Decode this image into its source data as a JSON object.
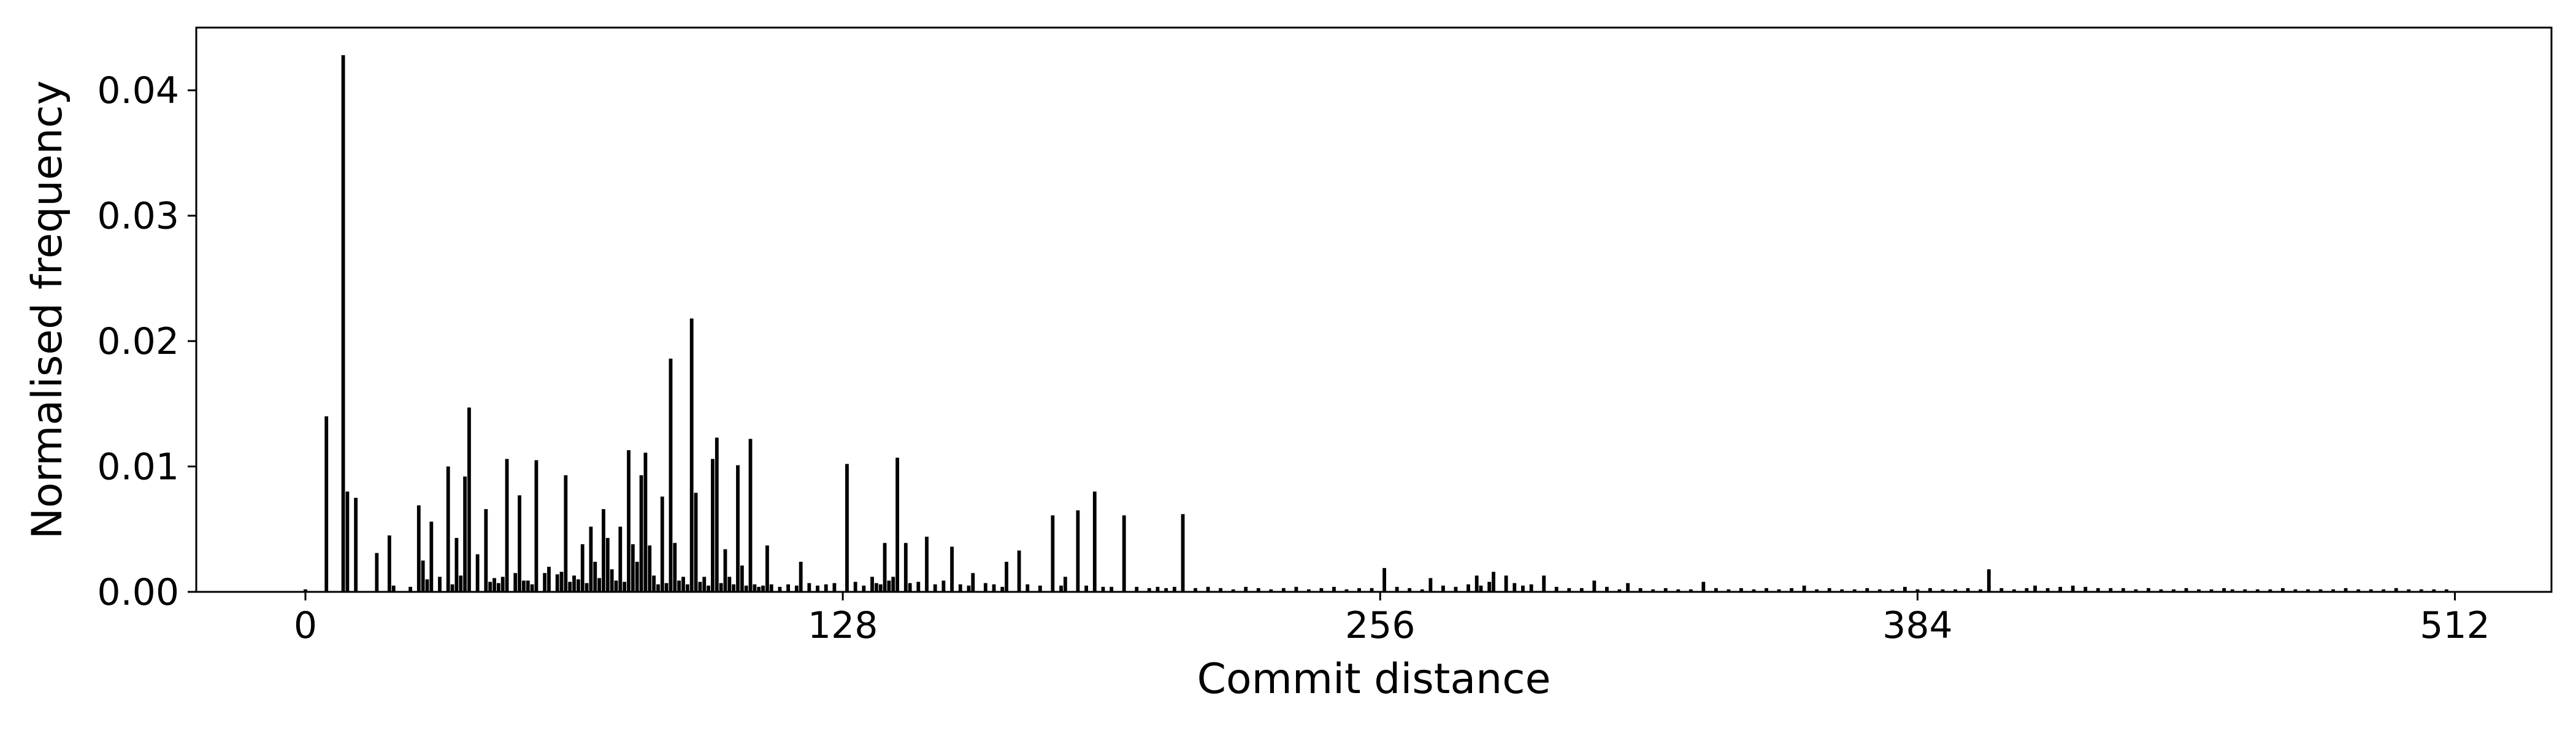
{
  "chart_data": {
    "type": "bar",
    "xlabel": "Commit distance",
    "ylabel": "Normalised frequency",
    "xlim": [
      -26,
      535
    ],
    "ylim": [
      0,
      0.045
    ],
    "xticks": [
      0,
      128,
      256,
      384,
      512
    ],
    "xtick_labels": [
      "0",
      "128",
      "256",
      "384",
      "512"
    ],
    "yticks": [
      0,
      0.01,
      0.02,
      0.03,
      0.04
    ],
    "ytick_labels": [
      "0.00",
      "0.01",
      "0.02",
      "0.03",
      "0.04"
    ],
    "grid": false,
    "bar_color": "#000000",
    "x": [
      0,
      5,
      9,
      10,
      12,
      17,
      20,
      27,
      28,
      30,
      32,
      34,
      36,
      37,
      38,
      39,
      41,
      43,
      45,
      48,
      50,
      51,
      52,
      55,
      57,
      58,
      60,
      61,
      62,
      64,
      66,
      68,
      69,
      71,
      72,
      73,
      75,
      77,
      78,
      79,
      80,
      81,
      82,
      85,
      87,
      88,
      90,
      92,
      93,
      95,
      97,
      98,
      100,
      101,
      103,
      104,
      106,
      110,
      118,
      129,
      135,
      138,
      140,
      141,
      143,
      148,
      154,
      159,
      167,
      170,
      178,
      181,
      184,
      188,
      195,
      209,
      257,
      268,
      279,
      282,
      283,
      286,
      295,
      307,
      315,
      333,
      357,
      381,
      401,
      412,
      427,
      459
    ],
    "values": [
      0.0002,
      0.014,
      0.0428,
      0.008,
      0.0075,
      0.0031,
      0.0045,
      0.0069,
      0.0025,
      0.0056,
      0.0012,
      0.01,
      0.0043,
      0.0013,
      0.0092,
      0.0147,
      0.003,
      0.0066,
      0.0011,
      0.0106,
      0.0015,
      0.0077,
      0.0009,
      0.0105,
      0.0015,
      0.002,
      0.0014,
      0.0016,
      0.0093,
      0.0013,
      0.0038,
      0.0052,
      0.0024,
      0.0066,
      0.0043,
      0.0018,
      0.0052,
      0.0113,
      0.0038,
      0.0024,
      0.0093,
      0.0111,
      0.0037,
      0.0076,
      0.0186,
      0.0039,
      0.0012,
      0.0218,
      0.0079,
      0.0012,
      0.0106,
      0.0123,
      0.0034,
      0.0012,
      0.0101,
      0.0021,
      0.0122,
      0.0037,
      0.0024,
      0.0102,
      0.0012,
      0.0039,
      0.0012,
      0.0107,
      0.0039,
      0.0044,
      0.0036,
      0.0015,
      0.0024,
      0.0033,
      0.0061,
      0.0012,
      0.0065,
      0.008,
      0.0061,
      0.0062,
      0.0019,
      0.0011,
      0.0013,
      0.0008,
      0.0016,
      0.0013,
      0.0013,
      0.0009,
      0.0007,
      0.0008,
      0.0005,
      0.0004,
      0.0018,
      0.0005,
      0.0003,
      0.0002
    ],
    "small_x": [
      21,
      25,
      29,
      35,
      44,
      46,
      47,
      53,
      54,
      63,
      65,
      67,
      70,
      74,
      76,
      83,
      84,
      86,
      89,
      91,
      94,
      96,
      99,
      102,
      105,
      107,
      108,
      109,
      111,
      113,
      115,
      117,
      120,
      122,
      124,
      126,
      131,
      133,
      136,
      137,
      139,
      144,
      146,
      150,
      152,
      156,
      158,
      162,
      164,
      166,
      172,
      175,
      180,
      186,
      190,
      192,
      198,
      201,
      203,
      205,
      207,
      212,
      215,
      218,
      221,
      224,
      227,
      230,
      233,
      236,
      239,
      242,
      245,
      248,
      251,
      254,
      260,
      263,
      266,
      271,
      274,
      277,
      280,
      288,
      290,
      292,
      298,
      301,
      304,
      310,
      313,
      318,
      321,
      324,
      327,
      330,
      336,
      339,
      342,
      345,
      348,
      351,
      354,
      360,
      363,
      366,
      369,
      372,
      375,
      378,
      384,
      387,
      390,
      393,
      396,
      399,
      404,
      407,
      410,
      415,
      418,
      421,
      424,
      430,
      433,
      436,
      439,
      442,
      445,
      448,
      451,
      454,
      457,
      462,
      465,
      468,
      471,
      474,
      477,
      480,
      483,
      486,
      489,
      492,
      495,
      498,
      501,
      504,
      507,
      510
    ],
    "small_values": [
      0.0005,
      0.0004,
      0.001,
      0.0006,
      0.0008,
      0.0007,
      0.0012,
      0.0009,
      0.0006,
      0.0008,
      0.001,
      0.0007,
      0.0011,
      0.0009,
      0.0008,
      0.0013,
      0.0006,
      0.0007,
      0.0009,
      0.0006,
      0.0008,
      0.0005,
      0.0007,
      0.0006,
      0.0005,
      0.0006,
      0.0004,
      0.0005,
      0.0006,
      0.0004,
      0.0006,
      0.0005,
      0.0007,
      0.0005,
      0.0006,
      0.0007,
      0.0008,
      0.0005,
      0.0007,
      0.0006,
      0.0009,
      0.0007,
      0.0008,
      0.0006,
      0.0009,
      0.0006,
      0.0005,
      0.0007,
      0.0006,
      0.0004,
      0.0006,
      0.0005,
      0.0005,
      0.0005,
      0.0004,
      0.0004,
      0.0004,
      0.0003,
      0.0004,
      0.0003,
      0.0004,
      0.0003,
      0.0004,
      0.0003,
      0.0002,
      0.0004,
      0.0003,
      0.0002,
      0.0003,
      0.0004,
      0.0002,
      0.0003,
      0.0004,
      0.0002,
      0.0003,
      0.0003,
      0.0004,
      0.0003,
      0.0002,
      0.0005,
      0.0004,
      0.0006,
      0.0005,
      0.0007,
      0.0005,
      0.0006,
      0.0004,
      0.0003,
      0.0003,
      0.0004,
      0.0002,
      0.0003,
      0.0002,
      0.0003,
      0.0002,
      0.0002,
      0.0003,
      0.0002,
      0.0003,
      0.0002,
      0.0003,
      0.0002,
      0.0003,
      0.0002,
      0.0003,
      0.0002,
      0.0002,
      0.0003,
      0.0002,
      0.0002,
      0.0002,
      0.0003,
      0.0002,
      0.0002,
      0.0003,
      0.0002,
      0.0003,
      0.0002,
      0.0003,
      0.0003,
      0.0004,
      0.0005,
      0.0004,
      0.0003,
      0.0003,
      0.0002,
      0.0003,
      0.0002,
      0.0002,
      0.0003,
      0.0002,
      0.0002,
      0.0003,
      0.0002,
      0.0002,
      0.0002,
      0.0003,
      0.0002,
      0.0002,
      0.0002,
      0.0002,
      0.0003,
      0.0002,
      0.0002,
      0.0002,
      0.0003,
      0.0002,
      0.0002,
      0.0002,
      0.0002
    ]
  }
}
